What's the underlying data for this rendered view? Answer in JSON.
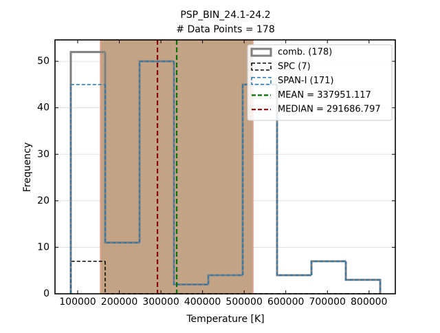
{
  "chart_data": {
    "type": "histogram",
    "title": "PSP_BIN_24.1-24.2",
    "subtitle": "# Data Points = 178",
    "xlabel": "Temperature [K]",
    "ylabel": "Frequency",
    "bins": [
      83480,
      166080,
      248680,
      331280,
      413880,
      496480,
      579080,
      661680,
      744280,
      826880
    ],
    "series": [
      {
        "name": "comb. (178)",
        "color": "#808080",
        "style": "solid",
        "width": 3,
        "values": [
          52,
          11,
          50,
          2,
          4,
          45,
          4,
          7,
          3
        ]
      },
      {
        "name": "SPC (7)",
        "color": "#000000",
        "style": "dashed",
        "width": 1.5,
        "values": [
          7,
          0,
          0,
          0,
          0,
          0,
          0,
          0,
          0
        ]
      },
      {
        "name": "SPAN-I (171)",
        "color": "#1f77b4",
        "style": "dashed",
        "width": 1.5,
        "values": [
          45,
          11,
          50,
          2,
          4,
          45,
          4,
          7,
          3
        ]
      }
    ],
    "span": {
      "range": [
        154500,
        521300
      ],
      "color": "#c2a385",
      "edgecolor": "#eda08c"
    },
    "vlines": [
      {
        "name": "MEAN = 337951.117",
        "value": 337951.117,
        "color": "#007000"
      },
      {
        "name": "MEDIAN = 291686.797",
        "value": 291686.797,
        "color": "#8b0000"
      }
    ],
    "xlim": [
      45500,
      863200
    ],
    "ylim": [
      0,
      54.6
    ],
    "xticks": [
      100000,
      200000,
      300000,
      400000,
      500000,
      600000,
      700000,
      800000
    ],
    "yticks": [
      0,
      10,
      20,
      30,
      40,
      50
    ],
    "grid": true,
    "legend": "upper right"
  }
}
